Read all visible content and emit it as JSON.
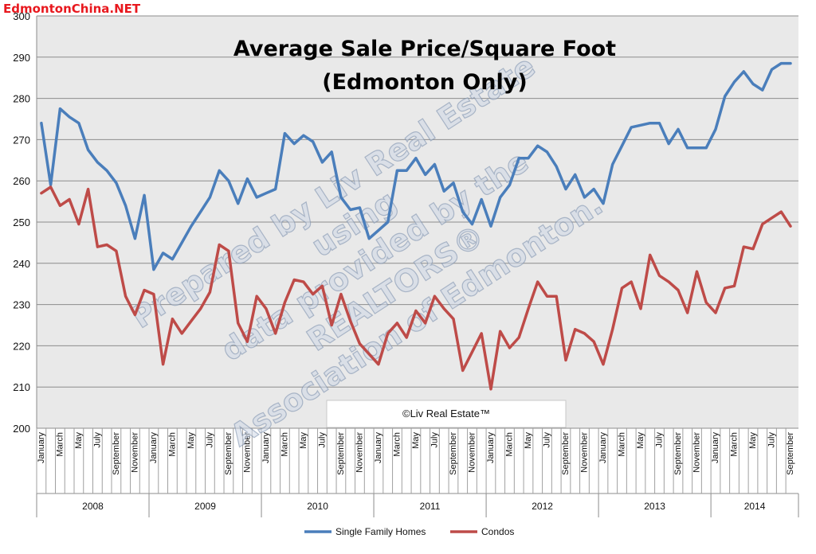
{
  "logo": {
    "text": "EdmontonChina.NET"
  },
  "chart_data": {
    "type": "line",
    "title": "Average Sale Price/Square Foot",
    "subtitle": "(Edmonton Only)",
    "ylim": [
      200,
      300
    ],
    "yticks": [
      200,
      210,
      220,
      230,
      240,
      250,
      260,
      270,
      280,
      290,
      300
    ],
    "grid": true,
    "legend_position": "bottom",
    "month_labels": [
      "January",
      "",
      "March",
      "",
      "May",
      "",
      "July",
      "",
      "September",
      "",
      "November",
      ""
    ],
    "years": [
      "2008",
      "2009",
      "2010",
      "2011",
      "2012",
      "2013",
      "2014"
    ],
    "series": [
      {
        "name": "Single Family Homes",
        "color": "#4a7ebb",
        "values": [
          274,
          259,
          277.5,
          275.5,
          274,
          267.5,
          264.5,
          262.5,
          259.5,
          254,
          246,
          256.5,
          238.5,
          242.5,
          241,
          245,
          249,
          252.5,
          256,
          262.5,
          260,
          254.5,
          260.5,
          256,
          257,
          258,
          271.5,
          269,
          271,
          269.5,
          264.5,
          267,
          256,
          253,
          253.5,
          246,
          248,
          250,
          262.5,
          262.5,
          265.5,
          261.5,
          264,
          257.5,
          259.5,
          252.5,
          249.5,
          255.5,
          249,
          256,
          259,
          265.5,
          265.5,
          268.5,
          267,
          263.5,
          258,
          261.5,
          256,
          258,
          254.5,
          264,
          268.5,
          273,
          273.5,
          274,
          274,
          269,
          272.5,
          268,
          268,
          268,
          272.5,
          280.5,
          284,
          286.5,
          283.5,
          282,
          287,
          288.5,
          288.5
        ]
      },
      {
        "name": "Condos",
        "color": "#be4b48",
        "values": [
          257,
          258.5,
          254,
          255.5,
          249.5,
          258,
          244,
          244.5,
          243,
          232,
          227.5,
          233.5,
          232.5,
          215.5,
          226.5,
          223,
          226,
          229,
          233,
          244.5,
          243,
          225.5,
          221,
          232,
          229,
          223,
          230.5,
          236,
          235.5,
          232.5,
          234.5,
          225,
          232.5,
          226,
          220.5,
          218,
          215.5,
          223,
          225.5,
          222,
          228.5,
          225.5,
          232,
          229,
          226.5,
          214,
          218.5,
          223,
          209.5,
          223.5,
          219.5,
          222,
          229,
          235.5,
          232,
          232,
          216.5,
          224,
          223,
          221,
          215.5,
          224,
          234,
          235.5,
          229,
          242,
          237,
          235.5,
          233.5,
          228,
          238,
          230.5,
          228,
          234,
          234.5,
          244,
          243.5,
          249.5,
          251,
          252.5,
          249
        ]
      }
    ]
  },
  "watermark": {
    "line1": "Prepared by Liv Real Estate",
    "line2": "using",
    "line3": "data provided by the",
    "line4": "REALTORS®",
    "line5": "Association of Edmonton."
  },
  "copyright": {
    "text": "©Liv Real Estate™"
  }
}
